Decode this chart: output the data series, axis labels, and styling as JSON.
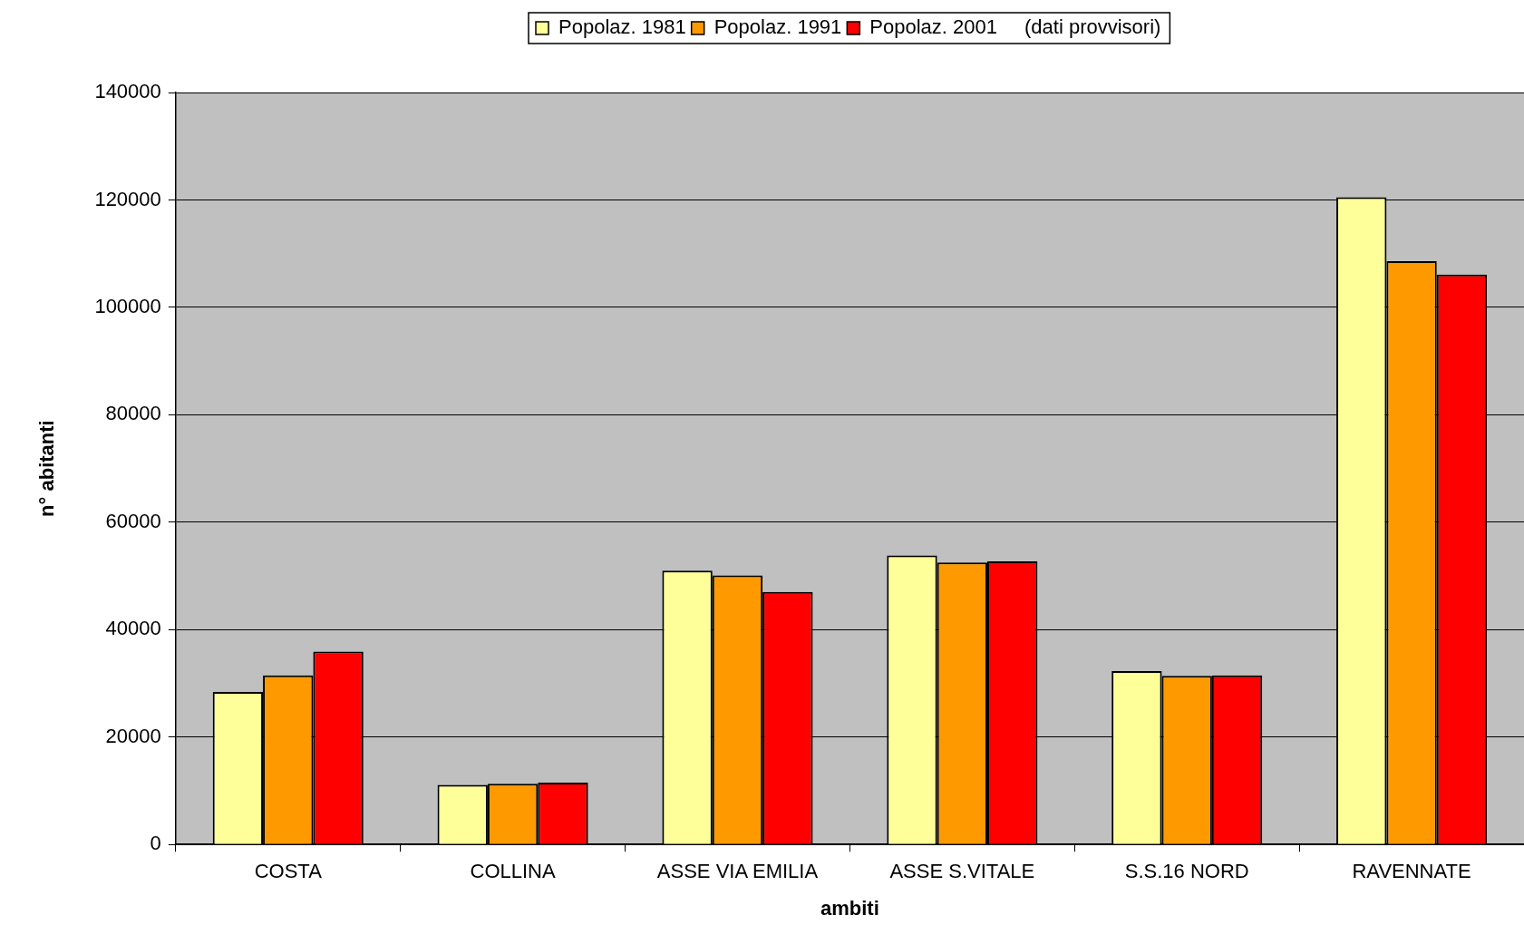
{
  "chart_data": {
    "type": "bar",
    "xlabel": "ambiti",
    "ylabel": "n° abitanti",
    "categories": [
      "COSTA",
      "COLLINA",
      "ASSE VIA EMILIA",
      "ASSE S.VITALE",
      "S.S.16 NORD",
      "RAVENNATE"
    ],
    "series": [
      {
        "name": "Popolaz. 1981",
        "color": "#ffff99",
        "values": [
          28400,
          11100,
          51000,
          53800,
          32300,
          120500
        ]
      },
      {
        "name": "Popolaz. 1991",
        "color": "#ff9900",
        "values": [
          31500,
          11300,
          50100,
          52500,
          31400,
          108600
        ]
      },
      {
        "name": "Popolaz. 2001",
        "color": "#ff0000",
        "values": [
          35900,
          11500,
          47000,
          52700,
          31500,
          106100
        ]
      }
    ],
    "ylim": [
      0,
      140000
    ],
    "yticks": [
      0,
      20000,
      40000,
      60000,
      80000,
      100000,
      120000,
      140000
    ],
    "grid": "y",
    "legend": "top",
    "annotations": [
      "(dati provvisori)"
    ]
  }
}
